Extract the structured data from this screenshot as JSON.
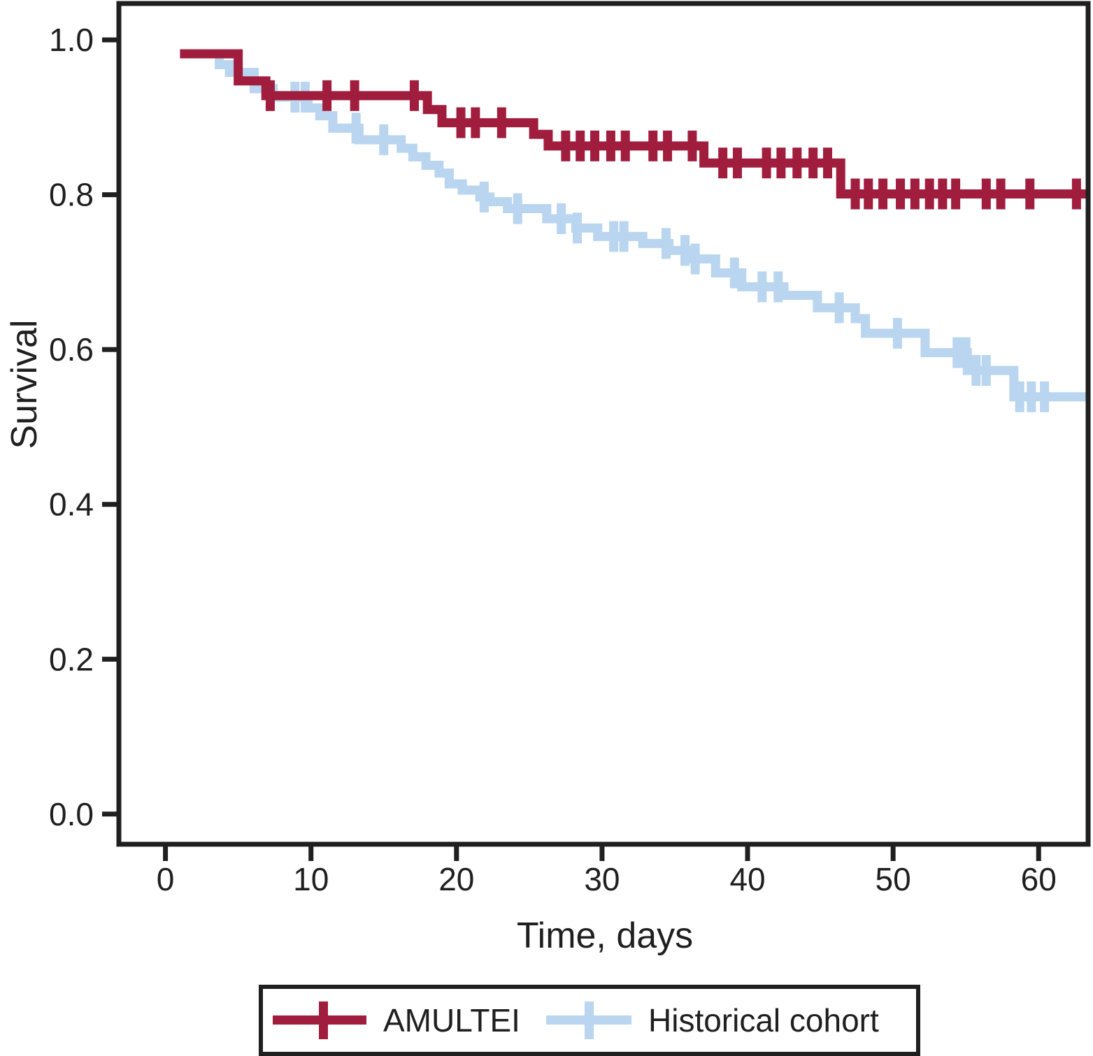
{
  "figure": {
    "background": "#ffffff",
    "axis_color": "#1f1f1f",
    "text_color": "#1f1f1f"
  },
  "chart_data": {
    "type": "line",
    "kind": "kaplan-meier-step",
    "title": "",
    "xlabel": "Time, days",
    "ylabel": "Survival",
    "xlim": [
      -3.2,
      63.4
    ],
    "ylim": [
      -0.039,
      1.047
    ],
    "grid": false,
    "legend_position": "bottom",
    "x_ticks": {
      "values": [
        0,
        10,
        20,
        30,
        40,
        50,
        60
      ],
      "labels": [
        "0",
        "10",
        "20",
        "30",
        "40",
        "50",
        "60"
      ]
    },
    "y_ticks": {
      "values": [
        0.0,
        0.2,
        0.4,
        0.6,
        0.8,
        1.0
      ],
      "labels": [
        "0.0",
        "0.2",
        "0.4",
        "0.6",
        "0.8",
        "1.0"
      ]
    },
    "series": [
      {
        "name": "AMULTEI",
        "color": "#a11d3e",
        "line_width": 13,
        "steps": [
          [
            1.0,
            0.982
          ],
          [
            5.0,
            0.947
          ],
          [
            6.9,
            0.928
          ],
          [
            18.0,
            0.91
          ],
          [
            19.0,
            0.893
          ],
          [
            25.3,
            0.878
          ],
          [
            26.3,
            0.863
          ],
          [
            37.0,
            0.841
          ],
          [
            46.4,
            0.801
          ]
        ],
        "end_x": 63.4,
        "censor_x": [
          7.2,
          11.1,
          13.0,
          17.1,
          20.3,
          21.3,
          23.1,
          27.5,
          28.5,
          29.5,
          30.6,
          31.6,
          33.5,
          34.5,
          36.2,
          38.3,
          39.3,
          41.3,
          42.3,
          43.4,
          44.5,
          45.5,
          47.4,
          48.3,
          49.3,
          50.5,
          51.5,
          52.5,
          53.4,
          54.3,
          56.4,
          57.4,
          59.4,
          62.6
        ]
      },
      {
        "name": "Historical cohort",
        "color": "#b9d5ef",
        "line_width": 13,
        "steps": [
          [
            1.0,
            0.982
          ],
          [
            3.7,
            0.968
          ],
          [
            4.4,
            0.958
          ],
          [
            6.1,
            0.937
          ],
          [
            7.4,
            0.926
          ],
          [
            9.8,
            0.912
          ],
          [
            10.6,
            0.902
          ],
          [
            11.5,
            0.886
          ],
          [
            13.3,
            0.871
          ],
          [
            16.2,
            0.86
          ],
          [
            17.0,
            0.849
          ],
          [
            17.9,
            0.838
          ],
          [
            18.8,
            0.828
          ],
          [
            19.5,
            0.814
          ],
          [
            20.4,
            0.806
          ],
          [
            21.6,
            0.797
          ],
          [
            22.3,
            0.791
          ],
          [
            23.5,
            0.782
          ],
          [
            26.2,
            0.769
          ],
          [
            28.2,
            0.757
          ],
          [
            29.7,
            0.746
          ],
          [
            32.8,
            0.737
          ],
          [
            34.6,
            0.728
          ],
          [
            36.0,
            0.717
          ],
          [
            37.8,
            0.699
          ],
          [
            39.6,
            0.681
          ],
          [
            42.5,
            0.67
          ],
          [
            44.8,
            0.654
          ],
          [
            47.4,
            0.64
          ],
          [
            48.1,
            0.621
          ],
          [
            52.2,
            0.596
          ],
          [
            55.1,
            0.573
          ],
          [
            58.3,
            0.539
          ]
        ],
        "end_x": 63.4,
        "censor_x": [
          8.9,
          9.6,
          13.1,
          15.0,
          21.9,
          24.2,
          27.2,
          28.3,
          30.8,
          31.5,
          34.4,
          35.7,
          36.4,
          39.1,
          41.0,
          42.1,
          46.3,
          50.3,
          54.4,
          55.0,
          55.7,
          56.4,
          58.7,
          59.5,
          60.4
        ]
      }
    ]
  }
}
